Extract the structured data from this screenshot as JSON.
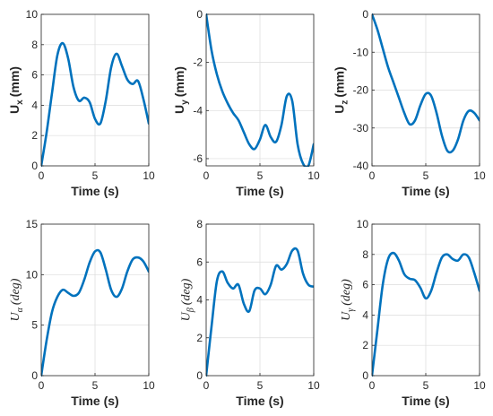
{
  "chart_data": [
    {
      "type": "line",
      "title": "",
      "xlabel": "Time (s)",
      "ylabel": "U_x (mm)",
      "ylabel_main": "U",
      "ylabel_sub": "x",
      "ylabel_unit": "(mm)",
      "xlim": [
        0,
        10
      ],
      "ylim": [
        0,
        10
      ],
      "xticks": [
        "0",
        "5",
        "10"
      ],
      "yticks": [
        "0",
        "2",
        "4",
        "6",
        "8",
        "10"
      ],
      "grid": true,
      "line_color": "#0072BD",
      "series": [
        {
          "x": [
            0,
            0.5,
            1,
            1.5,
            2,
            2.5,
            3,
            3.5,
            4,
            4.5,
            5,
            5.5,
            6,
            6.5,
            7,
            7.5,
            8,
            8.5,
            9,
            9.5,
            10
          ],
          "y": [
            0,
            2.2,
            4.8,
            7.3,
            8.1,
            7.1,
            5.2,
            4.3,
            4.5,
            4.2,
            3.1,
            2.8,
            4.3,
            6.5,
            7.4,
            6.6,
            5.7,
            5.4,
            5.6,
            4.4,
            2.8
          ]
        }
      ]
    },
    {
      "type": "line",
      "title": "",
      "xlabel": "Time (s)",
      "ylabel": "U_y (mm)",
      "ylabel_main": "U",
      "ylabel_sub": "y",
      "ylabel_unit": "(mm)",
      "xlim": [
        0,
        10
      ],
      "ylim": [
        -6.3,
        0
      ],
      "xticks": [
        "0",
        "5",
        "10"
      ],
      "yticks": [
        "-6",
        "-4",
        "-2",
        "0"
      ],
      "grid": true,
      "line_color": "#0072BD",
      "series": [
        {
          "x": [
            0,
            0.5,
            1,
            1.5,
            2,
            2.5,
            3,
            3.5,
            4,
            4.5,
            5,
            5.5,
            6,
            6.5,
            7,
            7.5,
            8,
            8.5,
            9,
            9.5,
            10
          ],
          "y": [
            0,
            -1.5,
            -2.5,
            -3.2,
            -3.7,
            -4.1,
            -4.4,
            -4.9,
            -5.4,
            -5.6,
            -5.2,
            -4.6,
            -5.1,
            -5.3,
            -4.6,
            -3.4,
            -3.6,
            -5.4,
            -6.2,
            -6.3,
            -5.4
          ]
        }
      ]
    },
    {
      "type": "line",
      "title": "",
      "xlabel": "Time (s)",
      "ylabel": "U_z (mm)",
      "ylabel_main": "U",
      "ylabel_sub": "z",
      "ylabel_unit": "(mm)",
      "xlim": [
        0,
        10
      ],
      "ylim": [
        -40,
        0
      ],
      "xticks": [
        "0",
        "5",
        "10"
      ],
      "yticks": [
        "-40",
        "-30",
        "-20",
        "-10",
        "0"
      ],
      "grid": true,
      "line_color": "#0072BD",
      "series": [
        {
          "x": [
            0,
            0.5,
            1,
            1.5,
            2,
            2.5,
            3,
            3.5,
            4,
            4.5,
            5,
            5.5,
            6,
            6.5,
            7,
            7.5,
            8,
            8.5,
            9,
            9.5,
            10
          ],
          "y": [
            0,
            -4,
            -9,
            -14,
            -18,
            -22,
            -26,
            -29,
            -28,
            -24,
            -21,
            -21.5,
            -26,
            -32,
            -36,
            -36,
            -33,
            -28,
            -25.5,
            -26,
            -28
          ]
        }
      ]
    },
    {
      "type": "line",
      "title": "",
      "xlabel": "Time (s)",
      "ylabel": "U_α (deg)",
      "ylabel_main": "U",
      "ylabel_sub": "α",
      "ylabel_unit": "(deg)",
      "xlim": [
        0,
        10
      ],
      "ylim": [
        0,
        15
      ],
      "xticks": [
        "0",
        "5",
        "10"
      ],
      "yticks": [
        "0",
        "5",
        "10",
        "15"
      ],
      "grid": true,
      "line_color": "#0072BD",
      "series": [
        {
          "x": [
            0,
            0.5,
            1,
            1.5,
            2,
            2.5,
            3,
            3.5,
            4,
            4.5,
            5,
            5.5,
            6,
            6.5,
            7,
            7.5,
            8,
            8.5,
            9,
            9.5,
            10
          ],
          "y": [
            0,
            3.5,
            6.3,
            7.8,
            8.5,
            8.2,
            7.9,
            8.2,
            9.5,
            11.2,
            12.3,
            12.2,
            10.5,
            8.5,
            7.8,
            8.6,
            10.3,
            11.5,
            11.7,
            11.3,
            10.3
          ]
        }
      ]
    },
    {
      "type": "line",
      "title": "",
      "xlabel": "Time (s)",
      "ylabel": "U_β (deg)",
      "ylabel_main": "U",
      "ylabel_sub": "β",
      "ylabel_unit": "(deg)",
      "xlim": [
        0,
        10
      ],
      "ylim": [
        0,
        8
      ],
      "xticks": [
        "0",
        "5",
        "10"
      ],
      "yticks": [
        "0",
        "2",
        "4",
        "6",
        "8"
      ],
      "grid": true,
      "line_color": "#0072BD",
      "series": [
        {
          "x": [
            0,
            0.5,
            1,
            1.5,
            2,
            2.5,
            3,
            3.5,
            4,
            4.5,
            5,
            5.5,
            6,
            6.5,
            7,
            7.5,
            8,
            8.5,
            9,
            9.5,
            10
          ],
          "y": [
            0,
            2.6,
            5,
            5.5,
            4.9,
            4.6,
            4.8,
            3.8,
            3.4,
            4.5,
            4.6,
            4.3,
            4.8,
            5.8,
            5.6,
            5.9,
            6.6,
            6.6,
            5.4,
            4.8,
            4.7
          ]
        }
      ]
    },
    {
      "type": "line",
      "title": "",
      "xlabel": "Time (s)",
      "ylabel": "U_γ (deg)",
      "ylabel_main": "U",
      "ylabel_sub": "γ",
      "ylabel_unit": "(deg)",
      "xlim": [
        0,
        10
      ],
      "ylim": [
        0,
        10
      ],
      "xticks": [
        "0",
        "5",
        "10"
      ],
      "yticks": [
        "0",
        "2",
        "4",
        "6",
        "8",
        "10"
      ],
      "grid": true,
      "line_color": "#0072BD",
      "series": [
        {
          "x": [
            0,
            0.5,
            1,
            1.5,
            2,
            2.5,
            3,
            3.5,
            4,
            4.5,
            5,
            5.5,
            6,
            6.5,
            7,
            7.5,
            8,
            8.5,
            9,
            9.5,
            10
          ],
          "y": [
            0,
            3,
            6,
            7.7,
            8.1,
            7.6,
            6.7,
            6.4,
            6.3,
            5.8,
            5.1,
            5.6,
            6.8,
            7.8,
            8,
            7.7,
            7.6,
            8,
            7.8,
            6.8,
            5.6
          ]
        }
      ]
    }
  ]
}
